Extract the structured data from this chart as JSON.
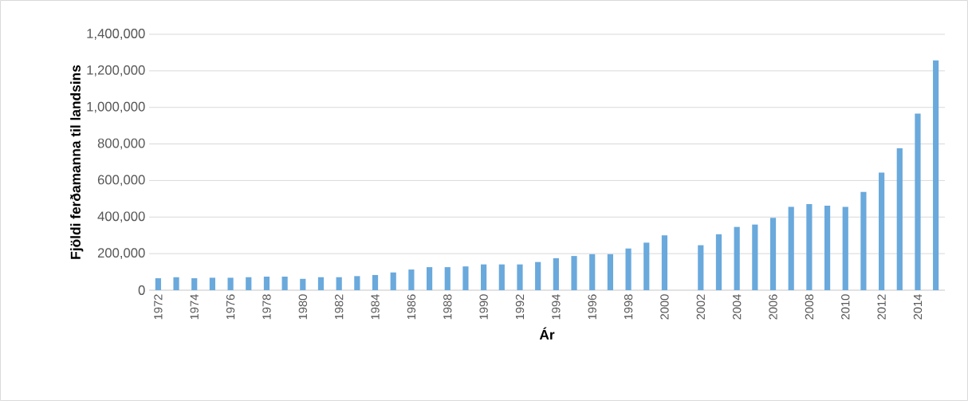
{
  "chart_data": {
    "type": "bar",
    "xlabel": "Ár",
    "ylabel": "Fjöldi ferðamanna til landsins",
    "categories": [
      "1972",
      null,
      "1974",
      null,
      "1976",
      null,
      "1978",
      null,
      "1980",
      null,
      "1982",
      null,
      "1984",
      null,
      "1986",
      null,
      "1988",
      null,
      "1990",
      null,
      "1992",
      null,
      "1994",
      null,
      "1996",
      null,
      "1998",
      null,
      "2000",
      null,
      "2002",
      null,
      "2004",
      null,
      "2006",
      null,
      "2008",
      null,
      "2010",
      null,
      "2012",
      null,
      "2014",
      null
    ],
    "values": [
      65000,
      71000,
      65000,
      68000,
      68000,
      71000,
      74000,
      74000,
      62000,
      71000,
      71000,
      77000,
      83000,
      97000,
      113000,
      126000,
      126000,
      130000,
      141000,
      141000,
      141000,
      154000,
      175000,
      187000,
      197000,
      197000,
      228000,
      260000,
      300000,
      null,
      246000,
      306000,
      346000,
      359000,
      396000,
      456000,
      471000,
      462000,
      456000,
      537000,
      643000,
      776000,
      966000,
      1257000
    ],
    "color": "#6aa9dc",
    "ylim": [
      0,
      1400000
    ],
    "yticks": [
      0,
      {
        "value": 200000,
        "label": "200,000"
      },
      {
        "value": 400000,
        "label": "400,000"
      },
      {
        "value": 600000,
        "label": "600,000"
      },
      {
        "value": 800000,
        "label": "800,000"
      },
      {
        "value": 1000000,
        "label": "1,000,000"
      },
      {
        "value": 1200000,
        "label": "1,200,000"
      },
      {
        "value": 1400000,
        "label": "1,400,000"
      }
    ],
    "grid": "y"
  }
}
